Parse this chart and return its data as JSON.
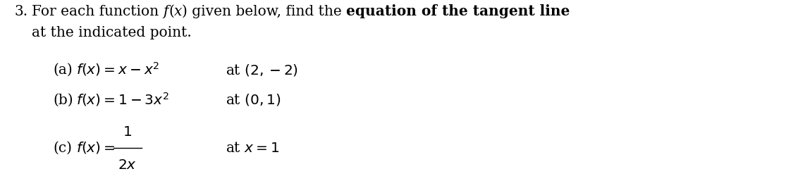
{
  "background_color": "#ffffff",
  "fig_width": 11.32,
  "fig_height": 2.57,
  "dpi": 100,
  "number": "3.",
  "intro_normal": "For each function ",
  "intro_italic": "f",
  "intro_normal2": "(",
  "intro_italic2": "x",
  "intro_normal3": ") given below, find the ",
  "intro_bold": "equation of the tangent line",
  "line2": "at the indicated point.",
  "part_a_label": "(a)",
  "part_a_math": "$f(x) = x - x^2$",
  "part_a_point": "at $(2, -2)$",
  "part_b_label": "(b)",
  "part_b_math": "$f(x) = 1 - 3x^2$",
  "part_b_point": "at $(0, 1)$",
  "part_c_label": "(c)",
  "part_c_math_num": "$1$",
  "part_c_math_denom": "$2x$",
  "part_c_eq": "$f(x) = $",
  "part_c_point": "at $x = 1$",
  "text_color": "#000000",
  "font_size_main": 14.5,
  "font_size_parts": 14.5
}
